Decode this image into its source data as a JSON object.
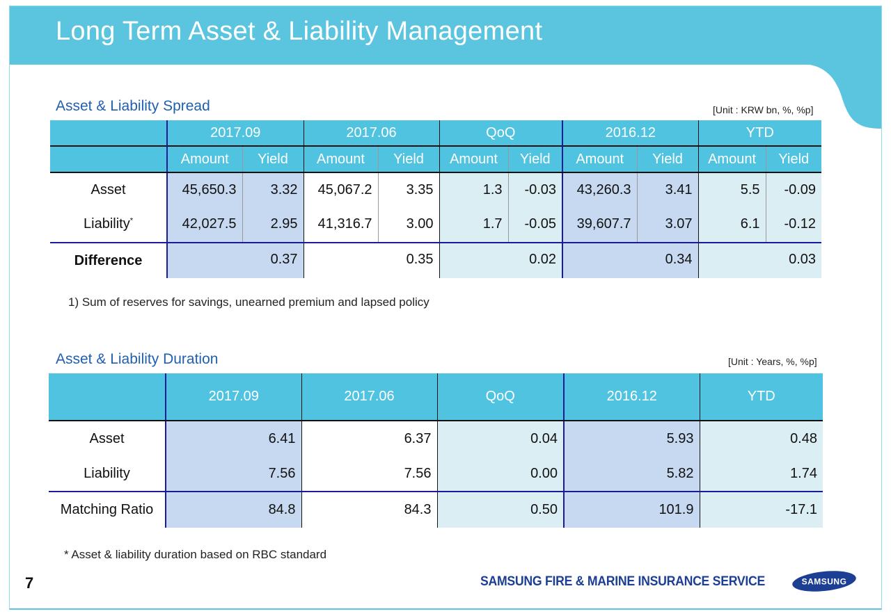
{
  "title": "Long Term Asset & Liability Management",
  "spread": {
    "heading": "Asset & Liability Spread",
    "unit": "[Unit : KRW bn, %, %p]",
    "periods": [
      "2017.09",
      "2017.06",
      "QoQ",
      "2016.12",
      "YTD"
    ],
    "sub": [
      "Amount",
      "Yield"
    ],
    "rows": [
      {
        "label": "Asset",
        "sup": "",
        "values": [
          "45,650.3",
          "3.32",
          "45,067.2",
          "3.35",
          "1.3",
          "-0.03",
          "43,260.3",
          "3.41",
          "5.5",
          "-0.09"
        ]
      },
      {
        "label": "Liability",
        "sup": "*",
        "values": [
          "42,027.5",
          "2.95",
          "41,316.7",
          "3.00",
          "1.7",
          "-0.05",
          "39,607.7",
          "3.07",
          "6.1",
          "-0.12"
        ]
      }
    ],
    "difference": {
      "label": "Difference",
      "values": [
        "0.37",
        "0.35",
        "0.02",
        "0.34",
        "0.03"
      ]
    },
    "footnote": "1) Sum of reserves for savings, unearned premium and lapsed policy"
  },
  "duration": {
    "heading": "Asset & Liability Duration",
    "unit": "[Unit : Years, %, %p]",
    "periods": [
      "2017.09",
      "2017.06",
      "QoQ",
      "2016.12",
      "YTD"
    ],
    "rows": [
      {
        "label": "Asset",
        "values": [
          "6.41",
          "6.37",
          "0.04",
          "5.93",
          "0.48"
        ]
      },
      {
        "label": "Liability",
        "values": [
          "7.56",
          "7.56",
          "0.00",
          "5.82",
          "1.74"
        ]
      },
      {
        "label": "Matching Ratio",
        "values": [
          "84.8",
          "84.3",
          "0.50",
          "101.9",
          "-17.1"
        ]
      }
    ],
    "footnote": "* Asset & liability duration based on RBC standard"
  },
  "footer": {
    "page": "7",
    "company": "SAMSUNG FIRE & MARINE INSURANCE SERVICE",
    "logo": "SAMSUNG"
  },
  "colors": {
    "header": "#4fc3e0",
    "accent_blue": "#1f5fb0",
    "col_fill_a": "#c6d9f1",
    "col_fill_b": "#dbeef4"
  }
}
